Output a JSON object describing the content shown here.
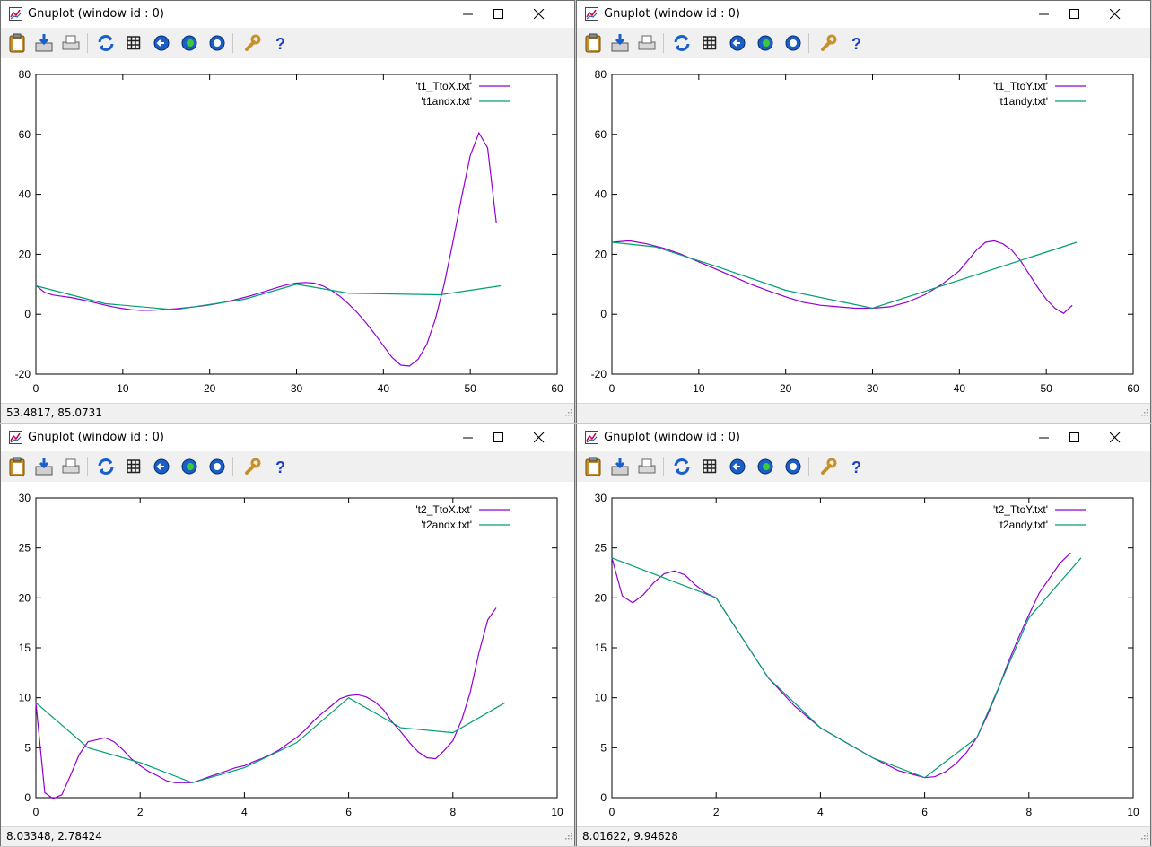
{
  "toolbar_items": [
    {
      "name": "copy-clipboard-icon"
    },
    {
      "name": "replot-export-icon"
    },
    {
      "name": "print-icon"
    },
    {
      "name": "refresh-icon"
    },
    {
      "name": "grid-icon"
    },
    {
      "name": "zoom-previous-icon"
    },
    {
      "name": "zoom-next-icon"
    },
    {
      "name": "unzoom-icon"
    },
    {
      "name": "options-wrench-icon"
    },
    {
      "name": "help-icon"
    }
  ],
  "windows": [
    {
      "title": "Gnuplot (window id : 0)",
      "status": "53.4817,  85.0731",
      "chart_data": {
        "type": "line",
        "xlim": [
          0,
          60
        ],
        "ylim": [
          -20,
          80
        ],
        "xticks": [
          0,
          10,
          20,
          30,
          40,
          50,
          60
        ],
        "yticks": [
          -20,
          0,
          20,
          40,
          60,
          80
        ],
        "legend_position": "top-right",
        "grid": false,
        "series": [
          {
            "name": "'t1_TtoX.txt'",
            "color": "#9400d3",
            "x": [
              0,
              1,
              2,
              3,
              4,
              5,
              6,
              7,
              8,
              9,
              10,
              11,
              12,
              13,
              14,
              15,
              16,
              17,
              18,
              19,
              20,
              21,
              22,
              23,
              24,
              25,
              26,
              27,
              28,
              29,
              30,
              31,
              32,
              33,
              34,
              35,
              36,
              37,
              38,
              39,
              40,
              41,
              42,
              43,
              44,
              45,
              46,
              47,
              48,
              49,
              50,
              51,
              52,
              53
            ],
            "y": [
              9.6,
              7.3,
              6.4,
              6.0,
              5.6,
              5.0,
              4.4,
              3.7,
              3.0,
              2.4,
              1.9,
              1.5,
              1.3,
              1.3,
              1.4,
              1.6,
              1.8,
              2.1,
              2.4,
              2.7,
              3.1,
              3.6,
              4.2,
              4.9,
              5.6,
              6.4,
              7.3,
              8.2,
              9.1,
              9.9,
              10.4,
              10.6,
              10.4,
              9.5,
              8.0,
              6.0,
              3.4,
              0.5,
              -2.9,
              -6.6,
              -10.5,
              -14.4,
              -17.0,
              -17.3,
              -15.0,
              -10.0,
              -1.5,
              10.0,
              24.0,
              39.0,
              53.0,
              60.5,
              55.5,
              30.5
            ]
          },
          {
            "name": "'t1andx.txt'",
            "color": "#009e73",
            "x": [
              0,
              8,
              16,
              24,
              30,
              36,
              46.5,
              53.5
            ],
            "y": [
              9.5,
              3.5,
              1.5,
              5.0,
              10.0,
              7.0,
              6.5,
              9.5
            ]
          }
        ]
      }
    },
    {
      "title": "Gnuplot (window id : 0)",
      "status": "",
      "chart_data": {
        "type": "line",
        "xlim": [
          0,
          60
        ],
        "ylim": [
          -20,
          80
        ],
        "xticks": [
          0,
          10,
          20,
          30,
          40,
          50,
          60
        ],
        "yticks": [
          -20,
          0,
          20,
          40,
          60,
          80
        ],
        "legend_position": "top-right",
        "grid": false,
        "series": [
          {
            "name": "'t1_TtoY.txt'",
            "color": "#9400d3",
            "x": [
              0,
              2,
              4,
              6,
              8,
              10,
              12,
              14,
              16,
              18,
              20,
              22,
              24,
              26,
              28,
              30,
              32,
              34,
              36,
              38,
              40,
              42,
              43,
              44,
              45,
              46,
              47,
              48,
              49,
              50,
              51,
              52,
              53
            ],
            "y": [
              24.0,
              24.5,
              23.5,
              22.0,
              20.0,
              17.5,
              15.0,
              12.5,
              10.0,
              7.8,
              5.8,
              4.0,
              3.0,
              2.5,
              2.0,
              2.0,
              2.5,
              4.0,
              6.5,
              10.0,
              14.5,
              21.5,
              24.0,
              24.5,
              23.5,
              21.5,
              18.0,
              13.5,
              9.0,
              5.0,
              2.0,
              0.3,
              3.0
            ]
          },
          {
            "name": "'t1andy.txt'",
            "color": "#009e73",
            "x": [
              0,
              5,
              12,
              20,
              30,
              53.5
            ],
            "y": [
              24.0,
              22.5,
              16.0,
              8.0,
              2.0,
              24.0
            ]
          }
        ]
      }
    },
    {
      "title": "Gnuplot (window id : 0)",
      "status": "8.03348,  2.78424",
      "chart_data": {
        "type": "line",
        "xlim": [
          0,
          10
        ],
        "ylim": [
          0,
          30
        ],
        "xticks": [
          0,
          2,
          4,
          6,
          8,
          10
        ],
        "yticks": [
          0,
          5,
          10,
          15,
          20,
          25,
          30
        ],
        "legend_position": "top-right",
        "grid": false,
        "series": [
          {
            "name": "'t2_TtoX.txt'",
            "color": "#9400d3",
            "x": [
              0,
              0.17,
              0.33,
              0.5,
              0.67,
              0.83,
              1.0,
              1.17,
              1.33,
              1.5,
              1.67,
              1.83,
              2.0,
              2.17,
              2.33,
              2.5,
              2.67,
              2.83,
              3.0,
              3.17,
              3.33,
              3.5,
              3.67,
              3.83,
              4.0,
              4.17,
              4.33,
              4.5,
              4.67,
              4.83,
              5.0,
              5.17,
              5.33,
              5.5,
              5.67,
              5.83,
              6.0,
              6.17,
              6.33,
              6.5,
              6.67,
              6.83,
              7.0,
              7.17,
              7.33,
              7.5,
              7.67,
              7.83,
              8.0,
              8.17,
              8.33,
              8.5,
              8.67,
              8.83
            ],
            "y": [
              9.5,
              0.5,
              -0.1,
              0.3,
              2.3,
              4.3,
              5.6,
              5.8,
              6.0,
              5.6,
              4.8,
              3.9,
              3.2,
              2.6,
              2.2,
              1.7,
              1.5,
              1.5,
              1.5,
              1.8,
              2.1,
              2.4,
              2.7,
              3.0,
              3.2,
              3.6,
              3.9,
              4.3,
              4.8,
              5.4,
              6.0,
              6.8,
              7.7,
              8.5,
              9.2,
              9.9,
              10.2,
              10.3,
              10.1,
              9.6,
              8.8,
              7.6,
              6.6,
              5.5,
              4.6,
              4.0,
              3.9,
              4.7,
              5.7,
              7.8,
              10.5,
              14.5,
              17.8,
              19.0
            ]
          },
          {
            "name": "'t2andx.txt'",
            "color": "#009e73",
            "x": [
              0,
              1,
              2,
              3,
              4,
              5,
              6,
              7,
              8,
              9
            ],
            "y": [
              9.5,
              5.0,
              3.5,
              1.5,
              3.0,
              5.5,
              10.0,
              7.0,
              6.5,
              9.5
            ]
          }
        ]
      }
    },
    {
      "title": "Gnuplot (window id : 0)",
      "status": "8.01622,  9.94628",
      "chart_data": {
        "type": "line",
        "xlim": [
          0,
          10
        ],
        "ylim": [
          0,
          30
        ],
        "xticks": [
          0,
          2,
          4,
          6,
          8,
          10
        ],
        "yticks": [
          0,
          5,
          10,
          15,
          20,
          25,
          30
        ],
        "legend_position": "top-right",
        "grid": false,
        "series": [
          {
            "name": "'t2_TtoY.txt'",
            "color": "#9400d3",
            "x": [
              0,
              0.2,
              0.4,
              0.6,
              0.8,
              1.0,
              1.2,
              1.4,
              1.6,
              1.8,
              2.0,
              2.5,
              3.0,
              3.5,
              4.0,
              4.5,
              5.0,
              5.5,
              6.0,
              6.2,
              6.4,
              6.6,
              6.8,
              7.0,
              7.2,
              7.4,
              7.6,
              7.8,
              8.0,
              8.2,
              8.4,
              8.6,
              8.8
            ],
            "y": [
              24.0,
              20.2,
              19.5,
              20.3,
              21.5,
              22.4,
              22.7,
              22.3,
              21.3,
              20.5,
              20.0,
              16.0,
              12.0,
              9.2,
              7.0,
              5.5,
              4.0,
              2.7,
              2.0,
              2.1,
              2.6,
              3.4,
              4.5,
              6.0,
              8.2,
              10.7,
              13.5,
              16.0,
              18.3,
              20.5,
              22.0,
              23.5,
              24.5
            ]
          },
          {
            "name": "'t2andy.txt'",
            "color": "#009e73",
            "x": [
              0,
              1,
              2,
              3,
              4,
              5,
              6,
              7,
              8,
              9
            ],
            "y": [
              24.0,
              22.0,
              20.0,
              12.0,
              7.0,
              4.0,
              2.0,
              6.0,
              18.0,
              24.0
            ]
          }
        ]
      }
    }
  ]
}
